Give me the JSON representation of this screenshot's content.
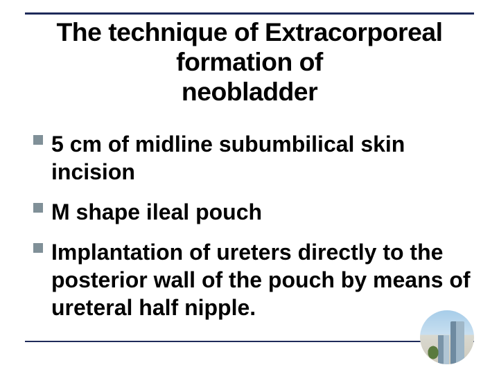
{
  "colors": {
    "background": "#ffffff",
    "text": "#000000",
    "rule": "#1e2a5a",
    "bullet_square": "#809098"
  },
  "title": {
    "line1": "The technique of Extracorporeal formation of",
    "line2": "neobladder",
    "fontsize_pt": 28
  },
  "bullets": {
    "fontsize_pt": 24,
    "items": [
      "5 cm of midline subumbilical skin incision",
      "M shape ileal pouch",
      "Implantation of  ureters directly to the posterior wall of the pouch by means of ureteral half nipple."
    ]
  },
  "decorative_image": {
    "description": "circular photo of high-rise buildings with sky and greenery",
    "shape": "circle"
  }
}
